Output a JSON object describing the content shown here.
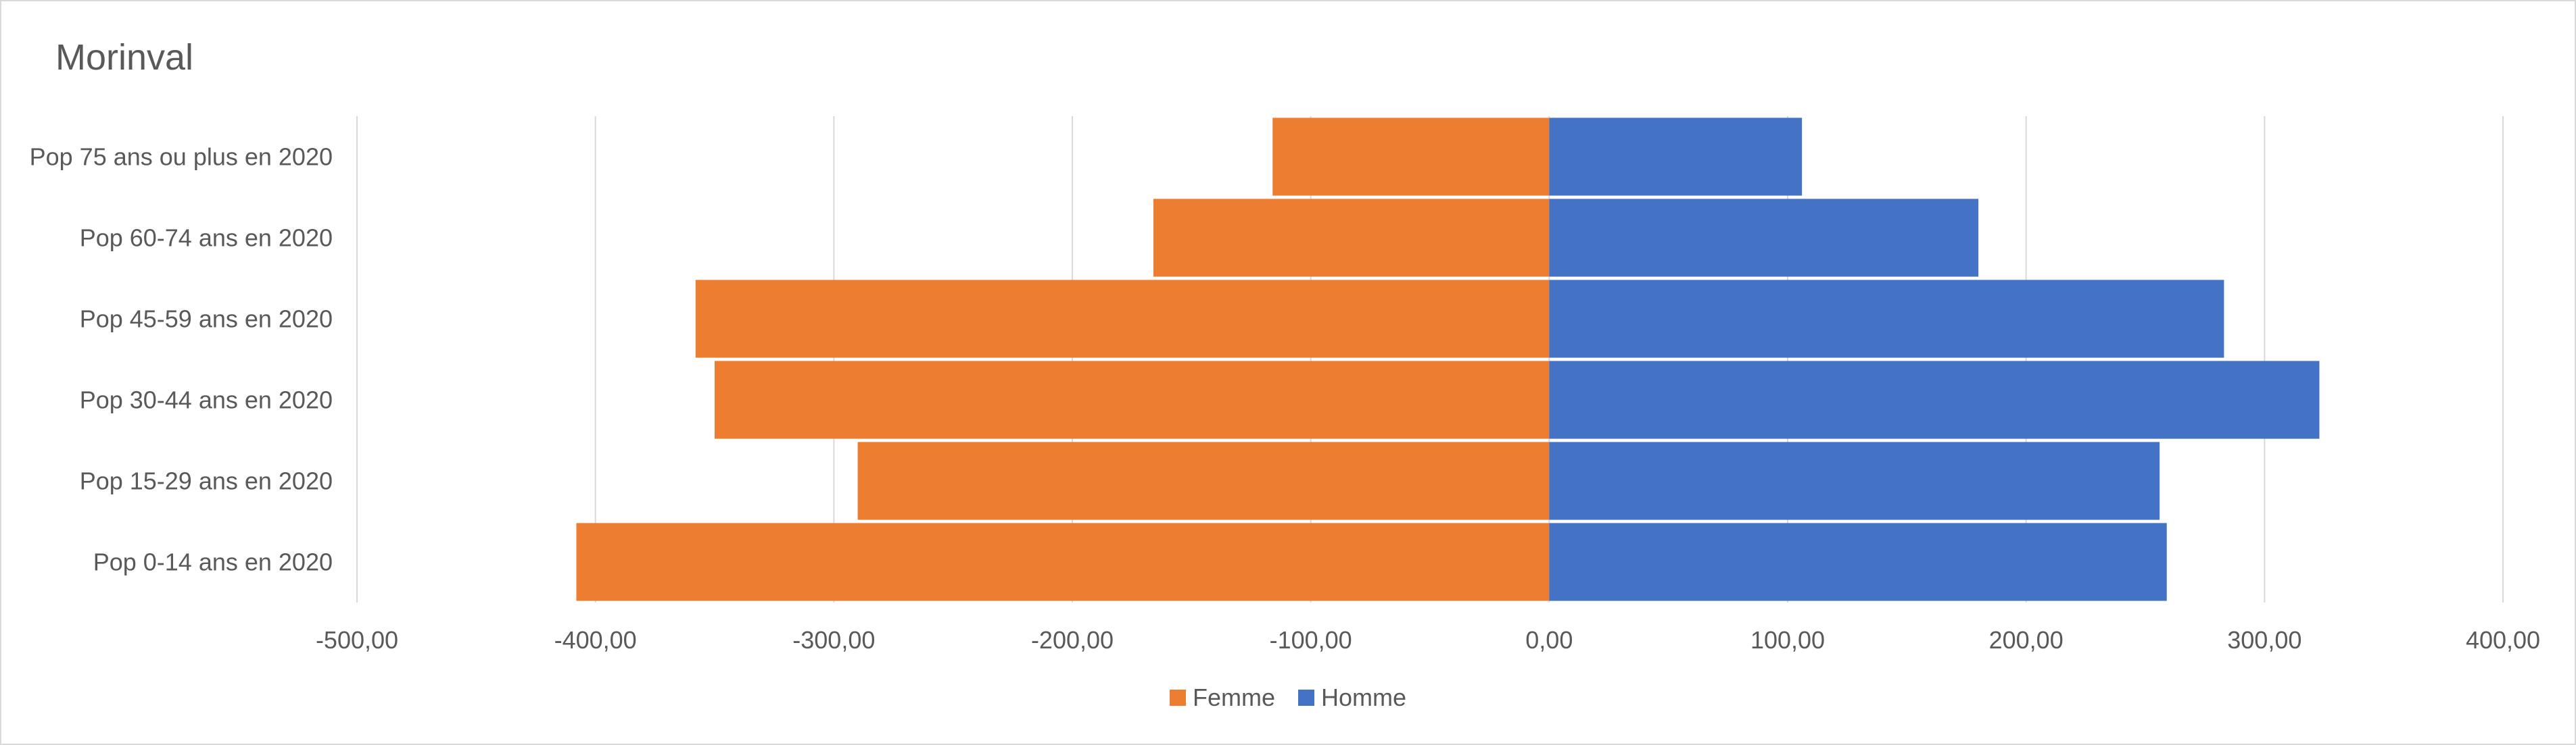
{
  "chart_data": {
    "type": "bar",
    "orientation": "horizontal",
    "title": "Morinval",
    "categories": [
      "Pop 75 ans ou plus en 2020",
      "Pop 60-74 ans en 2020",
      "Pop 45-59 ans en 2020",
      "Pop 30-44 ans en 2020",
      "Pop 15-29 ans en 2020",
      "Pop 0-14 ans en 2020"
    ],
    "series": [
      {
        "name": "Femme",
        "color": "#ED7D31",
        "values": [
          -116,
          -166,
          -358,
          -350,
          -290,
          -408
        ]
      },
      {
        "name": "Homme",
        "color": "#4472C4",
        "values": [
          106,
          180,
          283,
          323,
          256,
          259
        ]
      }
    ],
    "xlim": [
      -500,
      400
    ],
    "xticks": [
      -500,
      -400,
      -300,
      -200,
      -100,
      0,
      100,
      200,
      300,
      400
    ],
    "xtick_labels": [
      "-500,00",
      "-400,00",
      "-300,00",
      "-200,00",
      "-100,00",
      "0,00",
      "100,00",
      "200,00",
      "300,00",
      "400,00"
    ],
    "xlabel": "",
    "ylabel": "",
    "grid": "vertical",
    "legend_position": "bottom"
  }
}
